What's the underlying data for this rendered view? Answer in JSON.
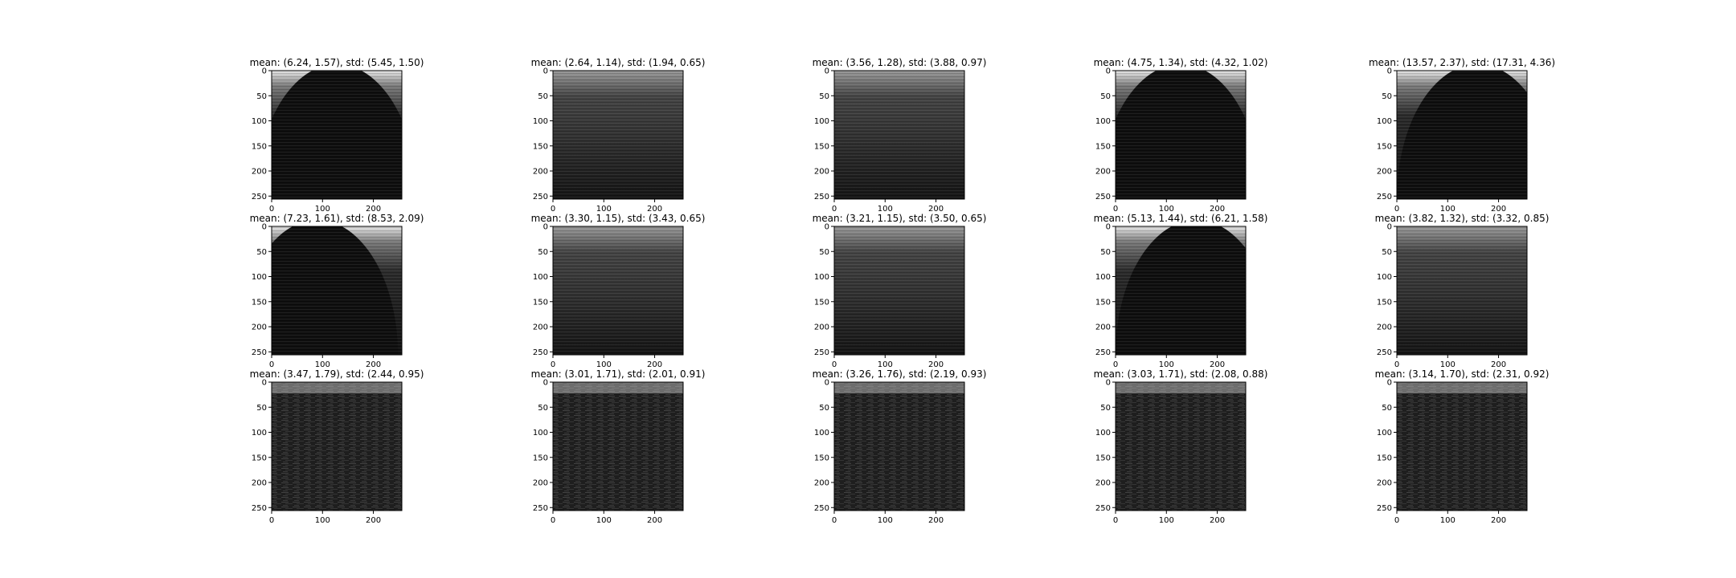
{
  "chart_data": [
    {
      "type": "heatmap",
      "title": "mean: (6.24, 1.57), std: (5.45, 1.50)",
      "pattern": "arch",
      "xticks": [
        "0",
        "100",
        "200"
      ],
      "yticks": [
        "0",
        "50",
        "100",
        "150",
        "200",
        "250"
      ],
      "xlim": [
        0,
        256
      ],
      "ylim": [
        256,
        0
      ],
      "colormap": "gray"
    },
    {
      "type": "heatmap",
      "title": "mean: (2.64, 1.14), std: (1.94, 0.65)",
      "pattern": "top-bright",
      "xticks": [
        "0",
        "100",
        "200"
      ],
      "yticks": [
        "0",
        "50",
        "100",
        "150",
        "200",
        "250"
      ],
      "xlim": [
        0,
        256
      ],
      "ylim": [
        256,
        0
      ],
      "colormap": "gray"
    },
    {
      "type": "heatmap",
      "title": "mean: (3.56, 1.28), std: (3.88, 0.97)",
      "pattern": "top-bright",
      "xticks": [
        "0",
        "100",
        "200"
      ],
      "yticks": [
        "0",
        "50",
        "100",
        "150",
        "200",
        "250"
      ],
      "xlim": [
        0,
        256
      ],
      "ylim": [
        256,
        0
      ],
      "colormap": "gray"
    },
    {
      "type": "heatmap",
      "title": "mean: (4.75, 1.34), std: (4.32, 1.02)",
      "pattern": "arch",
      "xticks": [
        "0",
        "100",
        "200"
      ],
      "yticks": [
        "0",
        "50",
        "100",
        "150",
        "200",
        "250"
      ],
      "xlim": [
        0,
        256
      ],
      "ylim": [
        256,
        0
      ],
      "colormap": "gray"
    },
    {
      "type": "heatmap",
      "title": "mean: (13.57, 2.37), std: (17.31, 4.36)",
      "pattern": "arch-left",
      "xticks": [
        "0",
        "100",
        "200"
      ],
      "yticks": [
        "0",
        "50",
        "100",
        "150",
        "200",
        "250"
      ],
      "xlim": [
        0,
        256
      ],
      "ylim": [
        256,
        0
      ],
      "colormap": "gray"
    },
    {
      "type": "heatmap",
      "title": "mean: (7.23, 1.61), std: (8.53, 2.09)",
      "pattern": "arch-right",
      "xticks": [
        "0",
        "100",
        "200"
      ],
      "yticks": [
        "0",
        "50",
        "100",
        "150",
        "200",
        "250"
      ],
      "xlim": [
        0,
        256
      ],
      "ylim": [
        256,
        0
      ],
      "colormap": "gray"
    },
    {
      "type": "heatmap",
      "title": "mean: (3.30, 1.15), std: (3.43, 0.65)",
      "pattern": "top-bright",
      "xticks": [
        "0",
        "100",
        "200"
      ],
      "yticks": [
        "0",
        "50",
        "100",
        "150",
        "200",
        "250"
      ],
      "xlim": [
        0,
        256
      ],
      "ylim": [
        256,
        0
      ],
      "colormap": "gray"
    },
    {
      "type": "heatmap",
      "title": "mean: (3.21, 1.15), std: (3.50, 0.65)",
      "pattern": "top-bright",
      "xticks": [
        "0",
        "100",
        "200"
      ],
      "yticks": [
        "0",
        "50",
        "100",
        "150",
        "200",
        "250"
      ],
      "xlim": [
        0,
        256
      ],
      "ylim": [
        256,
        0
      ],
      "colormap": "gray"
    },
    {
      "type": "heatmap",
      "title": "mean: (5.13, 1.44), std: (6.21, 1.58)",
      "pattern": "arch-left",
      "xticks": [
        "0",
        "100",
        "200"
      ],
      "yticks": [
        "0",
        "50",
        "100",
        "150",
        "200",
        "250"
      ],
      "xlim": [
        0,
        256
      ],
      "ylim": [
        256,
        0
      ],
      "colormap": "gray"
    },
    {
      "type": "heatmap",
      "title": "mean: (3.82, 1.32), std: (3.32, 0.85)",
      "pattern": "top-bright",
      "xticks": [
        "0",
        "100",
        "200"
      ],
      "yticks": [
        "0",
        "50",
        "100",
        "150",
        "200",
        "250"
      ],
      "xlim": [
        0,
        256
      ],
      "ylim": [
        256,
        0
      ],
      "colormap": "gray"
    },
    {
      "type": "heatmap",
      "title": "mean: (3.47, 1.79), std: (2.44, 0.95)",
      "pattern": "noise",
      "xticks": [
        "0",
        "100",
        "200"
      ],
      "yticks": [
        "0",
        "50",
        "100",
        "150",
        "200",
        "250"
      ],
      "xlim": [
        0,
        256
      ],
      "ylim": [
        256,
        0
      ],
      "colormap": "gray"
    },
    {
      "type": "heatmap",
      "title": "mean: (3.01, 1.71), std: (2.01, 0.91)",
      "pattern": "noise",
      "xticks": [
        "0",
        "100",
        "200"
      ],
      "yticks": [
        "0",
        "50",
        "100",
        "150",
        "200",
        "250"
      ],
      "xlim": [
        0,
        256
      ],
      "ylim": [
        256,
        0
      ],
      "colormap": "gray"
    },
    {
      "type": "heatmap",
      "title": "mean: (3.26, 1.76), std: (2.19, 0.93)",
      "pattern": "noise",
      "xticks": [
        "0",
        "100",
        "200"
      ],
      "yticks": [
        "0",
        "50",
        "100",
        "150",
        "200",
        "250"
      ],
      "xlim": [
        0,
        256
      ],
      "ylim": [
        256,
        0
      ],
      "colormap": "gray"
    },
    {
      "type": "heatmap",
      "title": "mean: (3.03, 1.71), std: (2.08, 0.88)",
      "pattern": "noise",
      "xticks": [
        "0",
        "100",
        "200"
      ],
      "yticks": [
        "0",
        "50",
        "100",
        "150",
        "200",
        "250"
      ],
      "xlim": [
        0,
        256
      ],
      "ylim": [
        256,
        0
      ],
      "colormap": "gray"
    },
    {
      "type": "heatmap",
      "title": "mean: (3.14, 1.70), std: (2.31, 0.92)",
      "pattern": "noise",
      "xticks": [
        "0",
        "100",
        "200"
      ],
      "yticks": [
        "0",
        "50",
        "100",
        "150",
        "200",
        "250"
      ],
      "xlim": [
        0,
        256
      ],
      "ylim": [
        256,
        0
      ],
      "colormap": "gray"
    }
  ]
}
